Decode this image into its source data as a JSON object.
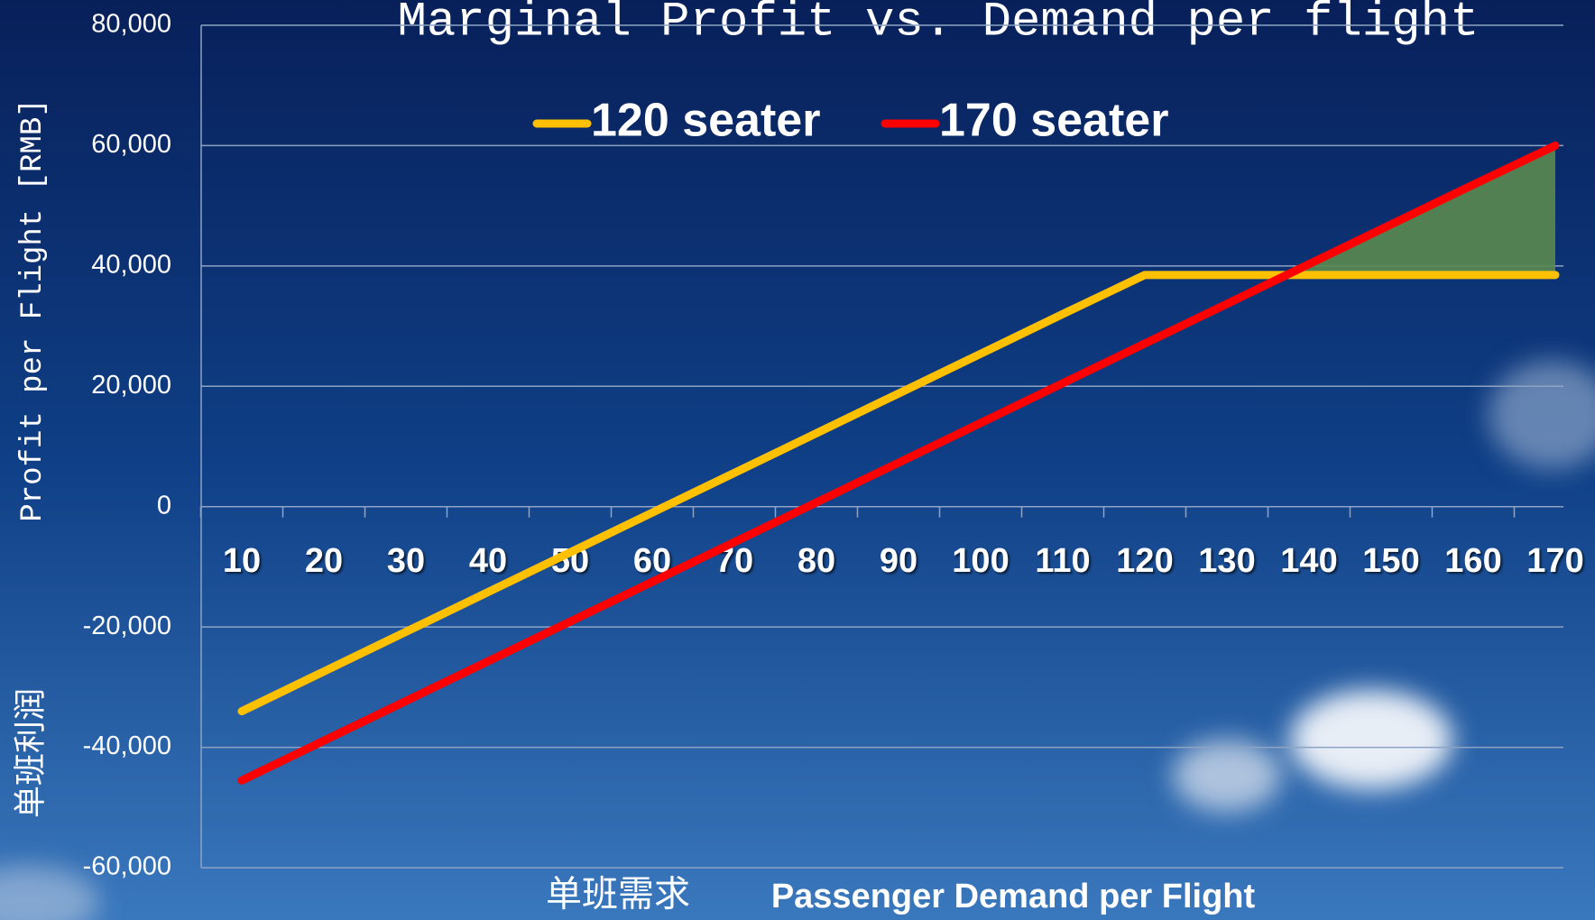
{
  "chart_data": {
    "type": "line",
    "title": "Marginal Profit vs. Demand per flight",
    "y_label": "Profit per Flight [RMB]",
    "y_label_cn": "单班利润",
    "x_label_cn": "单班需求",
    "x_label": "Passenger Demand per Flight",
    "categories": [
      "10",
      "20",
      "30",
      "40",
      "50",
      "60",
      "70",
      "80",
      "90",
      "100",
      "110",
      "120",
      "130",
      "140",
      "150",
      "160",
      "170"
    ],
    "series": [
      {
        "name": "120 seater",
        "color": "#ffc000",
        "values": [
          -34000,
          -27400,
          -20800,
          -14200,
          -7600,
          -1000,
          5600,
          12200,
          18800,
          25400,
          32000,
          38500,
          38500,
          38500,
          38500,
          38500,
          38500
        ]
      },
      {
        "name": "170 seater",
        "color": "#ff0000",
        "values": [
          -45500,
          -38900,
          -32300,
          -25700,
          -19100,
          -12500,
          -5900,
          700,
          7300,
          13900,
          20500,
          27100,
          33700,
          40300,
          46900,
          53500,
          60000
        ]
      }
    ],
    "ylim": [
      -60000,
      80000
    ],
    "yticks": [
      {
        "value": -60000,
        "label": "-60,000"
      },
      {
        "value": -40000,
        "label": "-40,000"
      },
      {
        "value": -20000,
        "label": "-20,000"
      },
      0,
      {
        "value": 20000,
        "label": "20,000"
      },
      {
        "value": 40000,
        "label": "40,000"
      },
      {
        "value": 60000,
        "label": "60,000"
      },
      {
        "value": 80000,
        "label": "80,000"
      }
    ],
    "grid": true,
    "gain_fill": "#5a8a50"
  }
}
